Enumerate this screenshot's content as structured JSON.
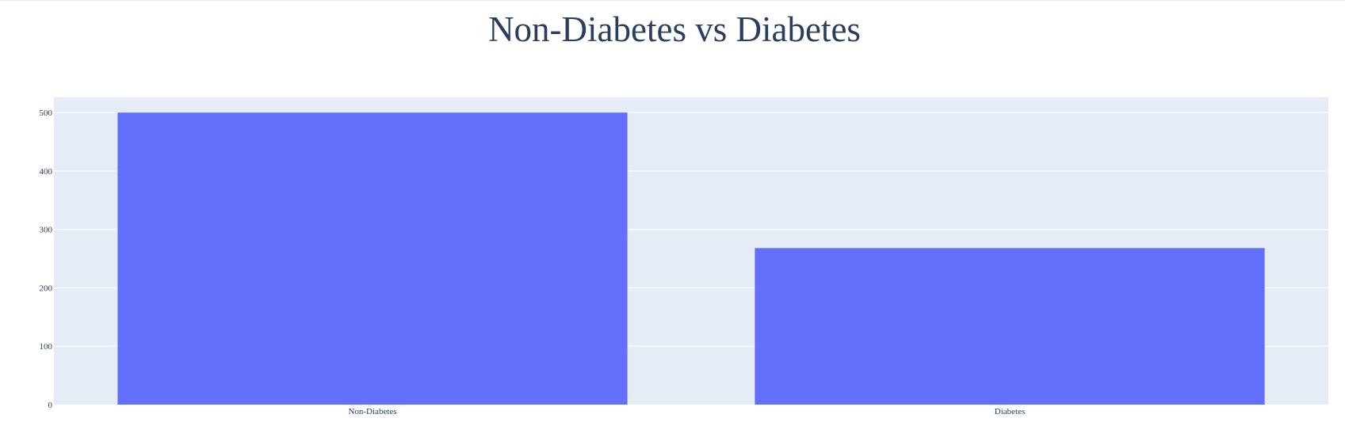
{
  "chart_data": {
    "type": "bar",
    "title": "Non-Diabetes vs Diabetes",
    "xlabel": "",
    "ylabel": "",
    "categories": [
      "Non-Diabetes",
      "Diabetes"
    ],
    "values": [
      500,
      268
    ],
    "ylim": [
      0,
      526
    ],
    "yticks": [
      0,
      100,
      200,
      300,
      400,
      500
    ],
    "grid": true,
    "bar_color": "#636efa",
    "plot_bg": "#e5ecf6",
    "gridline_color": "#ffffff",
    "text_color": "#2a3f5f"
  }
}
